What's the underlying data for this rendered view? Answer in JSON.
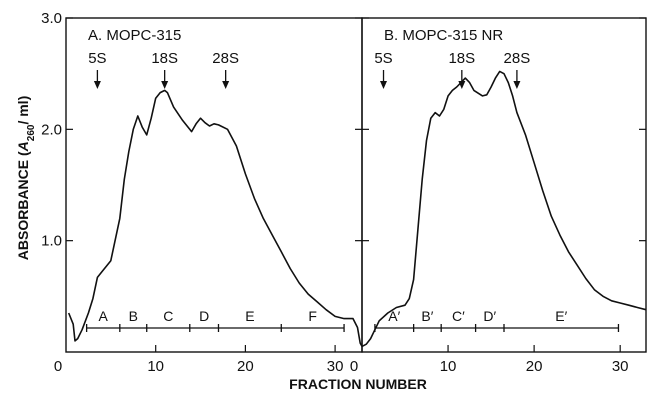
{
  "chart_data": {
    "type": "line",
    "xlabel": "FRACTION NUMBER",
    "ylabel_prefix": "ABSORBANCE (",
    "ylabel_symbol": "A",
    "ylabel_sub": "260",
    "ylabel_suffix": "/ ml)",
    "xlim": [
      0,
      33
    ],
    "ylim": [
      0,
      3.0
    ],
    "y_ticks": [
      {
        "value": 1.0,
        "label": "1.0"
      },
      {
        "value": 2.0,
        "label": "2.0"
      },
      {
        "value": 3.0,
        "label": "3.0"
      }
    ],
    "x_ticks": [
      {
        "value": 0,
        "label": "0"
      },
      {
        "value": 10,
        "label": "10"
      },
      {
        "value": 20,
        "label": "20"
      },
      {
        "value": 30,
        "label": "30"
      }
    ],
    "panels": [
      {
        "title": "A.   MOPC-315",
        "markers": [
          {
            "label": "5S",
            "x": 3.5
          },
          {
            "label": "18S",
            "x": 11.0
          },
          {
            "label": "28S",
            "x": 17.8
          }
        ],
        "fractions": {
          "boundaries": [
            2.3,
            6.0,
            9.0,
            13.8,
            17.0,
            24.0,
            31.0
          ],
          "labels": [
            "A",
            "B",
            "C",
            "D",
            "E",
            "F"
          ]
        },
        "series": [
          {
            "x": [
              0.3,
              0.8,
              1.0,
              1.3,
              1.8,
              2.5,
              3.0,
              3.5,
              4.0,
              5.0,
              6.0,
              6.5,
              7.0,
              7.5,
              8.0,
              8.5,
              9.0,
              9.5,
              10.0,
              10.5,
              11.0,
              11.3,
              12.0,
              13.0,
              14.0,
              14.5,
              15.0,
              15.5,
              16.0,
              16.5,
              17.0,
              18.0,
              19.0,
              20.0,
              21.0,
              22.0,
              23.0,
              24.0,
              25.0,
              26.0,
              27.0,
              28.0,
              29.0,
              30.0,
              31.0,
              32.0,
              32.5,
              32.8,
              33.0
            ],
            "y": [
              0.35,
              0.25,
              0.1,
              0.12,
              0.2,
              0.35,
              0.48,
              0.67,
              0.72,
              0.82,
              1.2,
              1.55,
              1.8,
              2.0,
              2.12,
              2.02,
              1.95,
              2.1,
              2.28,
              2.33,
              2.35,
              2.33,
              2.2,
              2.08,
              1.98,
              2.05,
              2.1,
              2.06,
              2.03,
              2.05,
              2.04,
              2.0,
              1.85,
              1.6,
              1.38,
              1.2,
              1.05,
              0.9,
              0.75,
              0.62,
              0.52,
              0.45,
              0.38,
              0.32,
              0.3,
              0.3,
              0.22,
              0.08,
              0.05
            ]
          }
        ]
      },
      {
        "title": "B.   MOPC-315 NR",
        "markers": [
          {
            "label": "5S",
            "x": 2.5
          },
          {
            "label": "18S",
            "x": 11.6
          },
          {
            "label": "28S",
            "x": 18.0
          }
        ],
        "fractions": {
          "boundaries": [
            1.5,
            6.0,
            9.2,
            13.2,
            16.5,
            29.8
          ],
          "labels": [
            "A′",
            "B′",
            "C′",
            "D′",
            "E′"
          ]
        },
        "series": [
          {
            "x": [
              0.0,
              0.5,
              1.0,
              1.5,
              2.0,
              3.0,
              4.0,
              5.0,
              5.5,
              6.0,
              6.5,
              7.0,
              7.5,
              8.0,
              8.5,
              9.0,
              9.5,
              10.0,
              10.5,
              11.0,
              11.5,
              12.0,
              12.5,
              13.0,
              14.0,
              14.5,
              15.0,
              15.5,
              16.0,
              16.5,
              17.0,
              17.5,
              18.0,
              19.0,
              20.0,
              21.0,
              22.0,
              23.0,
              24.0,
              25.0,
              26.0,
              27.0,
              28.0,
              29.0,
              30.0,
              31.0,
              32.0,
              33.0
            ],
            "y": [
              0.05,
              0.07,
              0.12,
              0.2,
              0.28,
              0.35,
              0.4,
              0.42,
              0.48,
              0.65,
              1.1,
              1.55,
              1.9,
              2.1,
              2.15,
              2.12,
              2.18,
              2.3,
              2.35,
              2.38,
              2.42,
              2.46,
              2.42,
              2.35,
              2.3,
              2.31,
              2.38,
              2.46,
              2.52,
              2.5,
              2.42,
              2.3,
              2.15,
              1.95,
              1.7,
              1.45,
              1.22,
              1.05,
              0.9,
              0.78,
              0.66,
              0.56,
              0.5,
              0.46,
              0.44,
              0.42,
              0.4,
              0.38
            ]
          }
        ]
      }
    ]
  }
}
